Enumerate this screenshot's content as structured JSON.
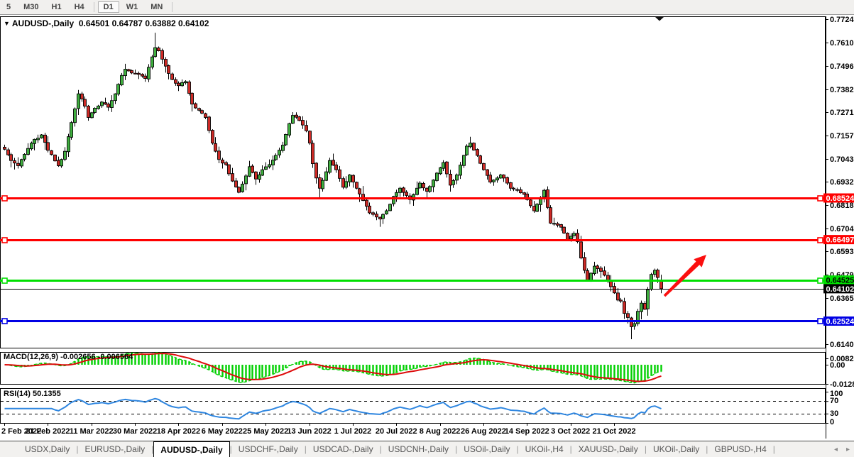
{
  "toolbar": {
    "timeframes": [
      "5",
      "M30",
      "H1",
      "H4",
      "D1",
      "W1",
      "MN"
    ],
    "active": "D1"
  },
  "chart_title": {
    "symbol": "AUDUSD-,Daily",
    "open": "0.64501",
    "high": "0.64787",
    "low": "0.63882",
    "close": "0.64102"
  },
  "price_axis": {
    "ticks": [
      "0.77240",
      "0.76100",
      "0.74960",
      "0.73820",
      "0.72710",
      "0.71570",
      "0.70430",
      "0.69320",
      "0.68180",
      "0.67040",
      "0.65930",
      "0.64790",
      "0.63650",
      "0.62510",
      "0.61400"
    ]
  },
  "hlines": [
    {
      "name": "resistance-line-upper",
      "price": 0.68524,
      "label": "0.68524",
      "color": "#FF0000",
      "text_color": "#FFFFFF",
      "width": 3,
      "handles": true
    },
    {
      "name": "resistance-line-lower",
      "price": 0.66497,
      "label": "0.66497",
      "color": "#FF0000",
      "text_color": "#FFFFFF",
      "width": 3,
      "handles": true
    },
    {
      "name": "support-line-green",
      "price": 0.64525,
      "label": "0.64525",
      "color": "#00DF00",
      "text_color": "#000000",
      "width": 3,
      "handles": true
    },
    {
      "name": "current-price-line",
      "price": 0.64102,
      "label": "0.64102",
      "color": "#000000",
      "text_color": "#FFFFFF",
      "width": 1,
      "handles": false
    },
    {
      "name": "support-line-blue",
      "price": 0.62524,
      "label": "0.62524",
      "color": "#0000E4",
      "text_color": "#FFFFFF",
      "width": 3,
      "handles": true
    }
  ],
  "arrow": {
    "color": "#FB0F0F",
    "tail": [
      936,
      417
    ],
    "tip": [
      995,
      359
    ]
  },
  "chart_data": {
    "type": "candlestick",
    "symbol": "AUDUSD-",
    "timeframe": "Daily",
    "n_bars": 197,
    "bars_per_x_label": 13,
    "x_labels": [
      "2 Feb 2022",
      "21 Feb 2022",
      "11 Mar 2022",
      "30 Mar 2022",
      "18 Apr 2022",
      "6 May 2022",
      "25 May 2022",
      "13 Jun 2022",
      "1 Jul 2022",
      "20 Jul 2022",
      "8 Aug 2022",
      "26 Aug 2022",
      "14 Sep 2022",
      "3 Oct 2022",
      "21 Oct 2022"
    ],
    "price_range_visible": [
      0.61195,
      0.77378
    ],
    "up_color": "#3FAE3F",
    "down_color": "#CE2A26",
    "wick_color": "#000000",
    "close_anchors": [
      [
        0,
        0.709
      ],
      [
        2,
        0.7035
      ],
      [
        4,
        0.701
      ],
      [
        6,
        0.7065
      ],
      [
        8,
        0.712
      ],
      [
        11,
        0.716
      ],
      [
        13,
        0.7085
      ],
      [
        16,
        0.701
      ],
      [
        18,
        0.708
      ],
      [
        20,
        0.722
      ],
      [
        22,
        0.736
      ],
      [
        24,
        0.73
      ],
      [
        25,
        0.7245
      ],
      [
        27,
        0.729
      ],
      [
        29,
        0.732
      ],
      [
        31,
        0.7295
      ],
      [
        33,
        0.736
      ],
      [
        35,
        0.745
      ],
      [
        36,
        0.748
      ],
      [
        38,
        0.7462
      ],
      [
        40,
        0.7455
      ],
      [
        42,
        0.7435
      ],
      [
        44,
        0.754
      ],
      [
        45,
        0.7585
      ],
      [
        46,
        0.757
      ],
      [
        48,
        0.7495
      ],
      [
        50,
        0.743
      ],
      [
        52,
        0.74
      ],
      [
        54,
        0.742
      ],
      [
        56,
        0.731
      ],
      [
        58,
        0.728
      ],
      [
        60,
        0.7245
      ],
      [
        62,
        0.712
      ],
      [
        64,
        0.704
      ],
      [
        66,
        0.7015
      ],
      [
        68,
        0.6935
      ],
      [
        70,
        0.688
      ],
      [
        72,
        0.696
      ],
      [
        73,
        0.7005
      ],
      [
        75,
        0.6945
      ],
      [
        77,
        0.699
      ],
      [
        79,
        0.7015
      ],
      [
        81,
        0.706
      ],
      [
        83,
        0.711
      ],
      [
        85,
        0.7215
      ],
      [
        86,
        0.7255
      ],
      [
        88,
        0.723
      ],
      [
        90,
        0.718
      ],
      [
        91,
        0.712
      ],
      [
        92,
        0.702
      ],
      [
        93,
        0.695
      ],
      [
        94,
        0.69
      ],
      [
        96,
        0.698
      ],
      [
        97,
        0.7035
      ],
      [
        99,
        0.699
      ],
      [
        101,
        0.6905
      ],
      [
        103,
        0.6965
      ],
      [
        105,
        0.69
      ],
      [
        107,
        0.684
      ],
      [
        109,
        0.678
      ],
      [
        111,
        0.676
      ],
      [
        112,
        0.675
      ],
      [
        114,
        0.679
      ],
      [
        116,
        0.686
      ],
      [
        118,
        0.69
      ],
      [
        120,
        0.6865
      ],
      [
        121,
        0.6845
      ],
      [
        123,
        0.69
      ],
      [
        124,
        0.6925
      ],
      [
        126,
        0.6885
      ],
      [
        128,
        0.694
      ],
      [
        130,
        0.7
      ],
      [
        131,
        0.7025
      ],
      [
        133,
        0.6915
      ],
      [
        135,
        0.6965
      ],
      [
        137,
        0.706
      ],
      [
        138,
        0.7105
      ],
      [
        139,
        0.712
      ],
      [
        141,
        0.706
      ],
      [
        143,
        0.699
      ],
      [
        145,
        0.693
      ],
      [
        147,
        0.695
      ],
      [
        148,
        0.6965
      ],
      [
        150,
        0.6925
      ],
      [
        151,
        0.69
      ],
      [
        153,
        0.689
      ],
      [
        155,
        0.687
      ],
      [
        157,
        0.6815
      ],
      [
        158,
        0.679
      ],
      [
        160,
        0.6855
      ],
      [
        161,
        0.689
      ],
      [
        163,
        0.673
      ],
      [
        165,
        0.672
      ],
      [
        166,
        0.671
      ],
      [
        168,
        0.665
      ],
      [
        170,
        0.668
      ],
      [
        171,
        0.664
      ],
      [
        172,
        0.656
      ],
      [
        173,
        0.65
      ],
      [
        174,
        0.645
      ],
      [
        176,
        0.652
      ],
      [
        178,
        0.6495
      ],
      [
        180,
        0.645
      ],
      [
        181,
        0.642
      ],
      [
        182,
        0.639
      ],
      [
        183,
        0.6355
      ],
      [
        184,
        0.635
      ],
      [
        185,
        0.629
      ],
      [
        186,
        0.627
      ],
      [
        187,
        0.6225
      ],
      [
        188,
        0.624
      ],
      [
        189,
        0.63
      ],
      [
        190,
        0.634
      ],
      [
        191,
        0.631
      ],
      [
        192,
        0.6405
      ],
      [
        193,
        0.648
      ],
      [
        194,
        0.65
      ],
      [
        195,
        0.6465
      ],
      [
        196,
        0.64102
      ]
    ],
    "wick_overrides": [
      {
        "bar": 45,
        "high": 0.7658
      },
      {
        "bar": 94,
        "low": 0.685
      },
      {
        "bar": 112,
        "low": 0.6712
      },
      {
        "bar": 139,
        "high": 0.7136
      },
      {
        "bar": 187,
        "low": 0.6164
      }
    ],
    "last_bar": {
      "open": 0.64501,
      "high": 0.64787,
      "low": 0.63882,
      "close": 0.64102
    }
  },
  "macd_panel": {
    "label": "MACD(12,26,9)",
    "macd_value": "-0.002656",
    "signal_value": "-0.006564",
    "params": {
      "fast": 12,
      "slow": 26,
      "signal": 9
    },
    "axis": [
      "0.00823",
      "0.00",
      "-0.01282"
    ],
    "axis_top_value": 0.00823,
    "axis_bottom_value": -0.01282,
    "histogram_color": "#00CF00",
    "macd_line_color": "#00CF00",
    "signal_color": "#DE0A0A"
  },
  "rsi_panel": {
    "label": "RSI(14)",
    "value": "50.1355",
    "period": 14,
    "axis": [
      "100",
      "70",
      "30",
      "0"
    ],
    "levels": [
      70,
      30
    ],
    "line_color": "#2E86E0",
    "level_color": "#000000"
  },
  "tabs": {
    "items": [
      "USDX,Daily",
      "EURUSD-,Daily",
      "AUDUSD-,Daily",
      "USDCHF-,Daily",
      "USDCAD-,Daily",
      "USDCNH-,Daily",
      "USOil-,Daily",
      "UKOil-,H4",
      "XAUUSD-,Daily",
      "UKOil-,Daily",
      "GBPUSD-,H4"
    ],
    "active": "AUDUSD-,Daily"
  },
  "colors": {
    "background": "#FFFFFF",
    "pane_border": "#000000",
    "toolbar_bg": "#F1F0EE",
    "shift_marker": "#111111"
  }
}
